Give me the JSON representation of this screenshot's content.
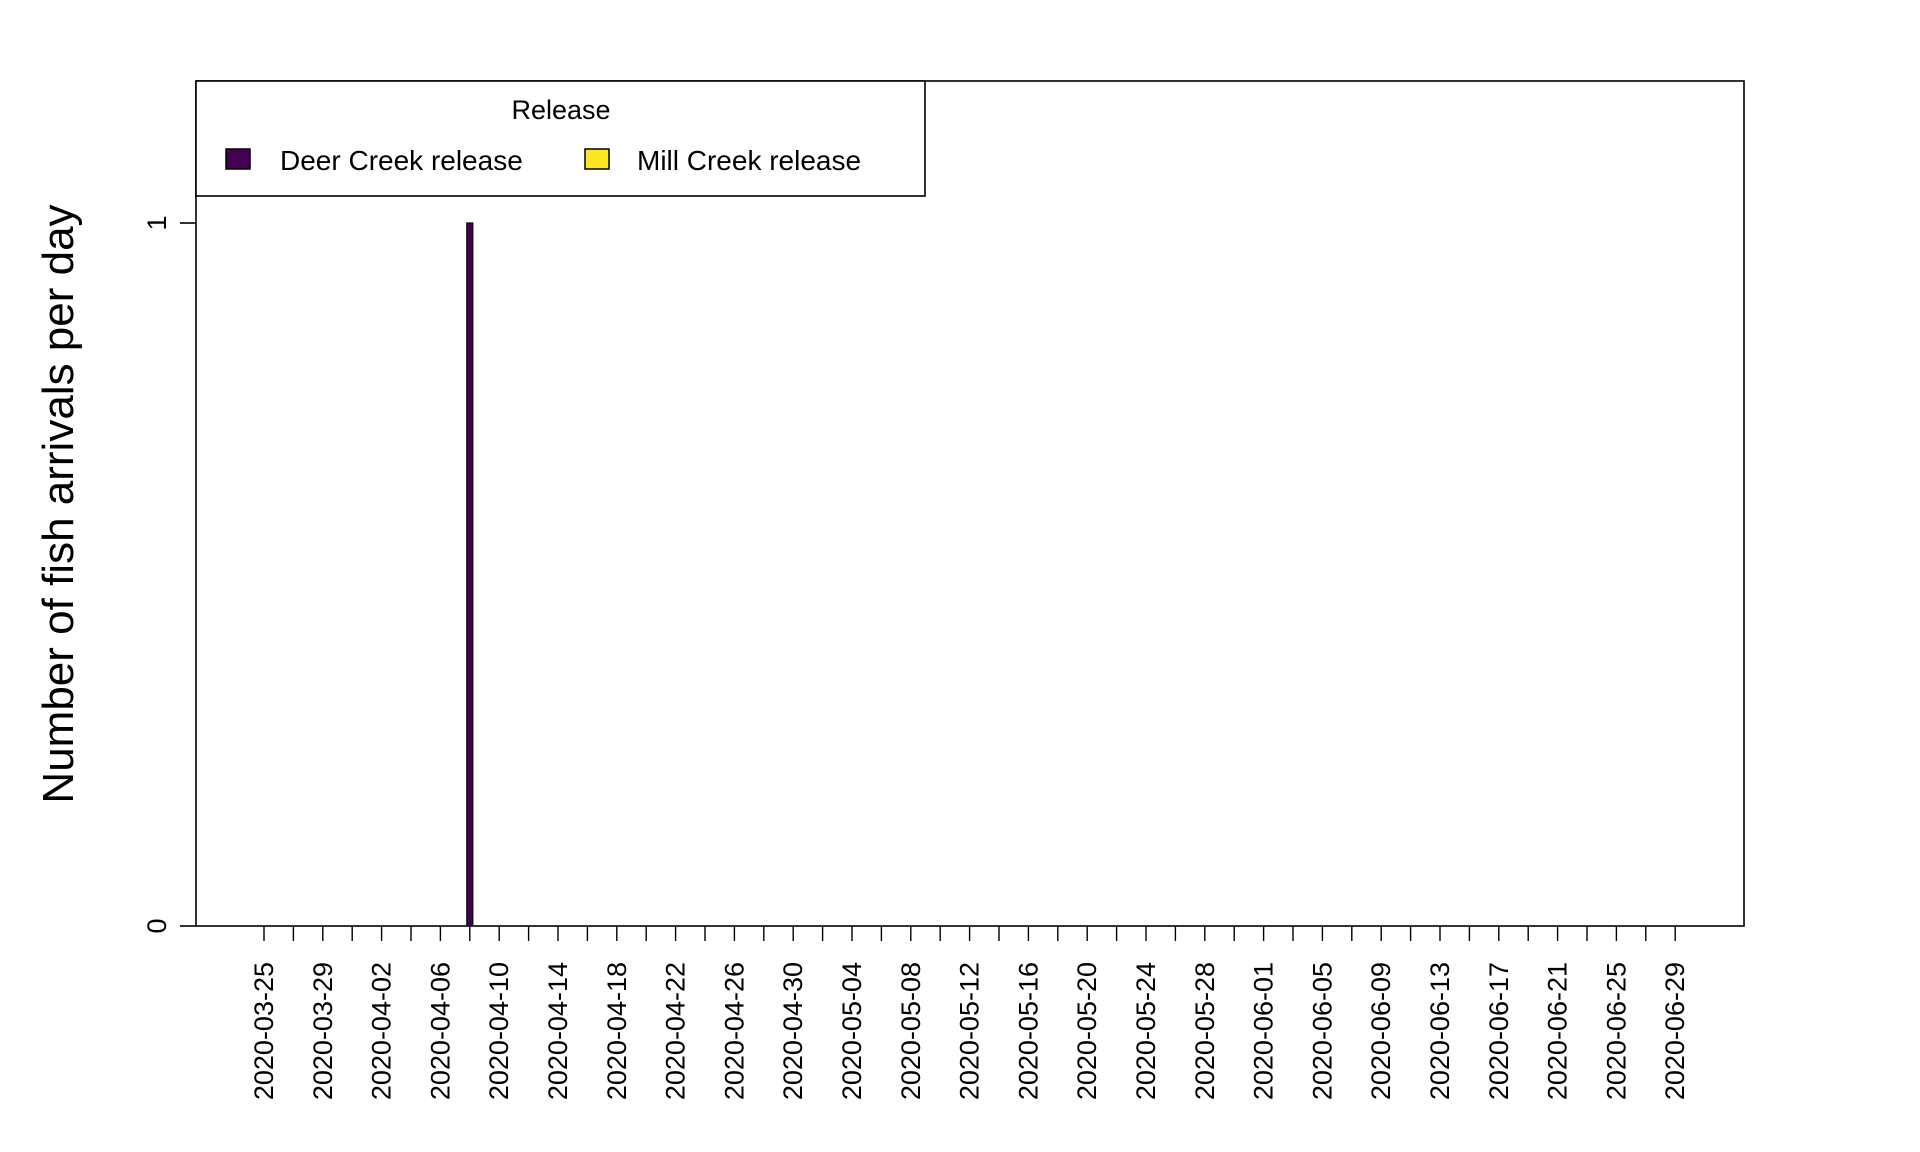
{
  "chart_data": {
    "type": "bar",
    "title": "",
    "xlabel": "",
    "ylabel": "Number of fish arrivals per day",
    "ylim": [
      0,
      1
    ],
    "yticks": [
      0,
      1
    ],
    "x_range": [
      "2020-03-19",
      "2020-07-01"
    ],
    "x_tick_labels": [
      "2020-03-25",
      "2020-03-29",
      "2020-04-02",
      "2020-04-06",
      "2020-04-10",
      "2020-04-14",
      "2020-04-18",
      "2020-04-22",
      "2020-04-26",
      "2020-04-30",
      "2020-05-04",
      "2020-05-08",
      "2020-05-12",
      "2020-05-16",
      "2020-05-20",
      "2020-05-24",
      "2020-05-28",
      "2020-06-01",
      "2020-06-05",
      "2020-06-09",
      "2020-06-13",
      "2020-06-17",
      "2020-06-21",
      "2020-06-25",
      "2020-06-29"
    ],
    "x_minor_ticks_every_days": 2,
    "grid": false,
    "legend": {
      "title": "Release",
      "placement": "top-left",
      "entries": [
        {
          "name": "Deer Creek release",
          "color": "#440154"
        },
        {
          "name": "Mill Creek release",
          "color": "#FDE725"
        }
      ]
    },
    "series": [
      {
        "name": "Deer Creek release",
        "color": "#440154",
        "points": [
          {
            "x": "2020-04-08",
            "y": 1
          }
        ]
      },
      {
        "name": "Mill Creek release",
        "color": "#FDE725",
        "points": []
      }
    ]
  }
}
